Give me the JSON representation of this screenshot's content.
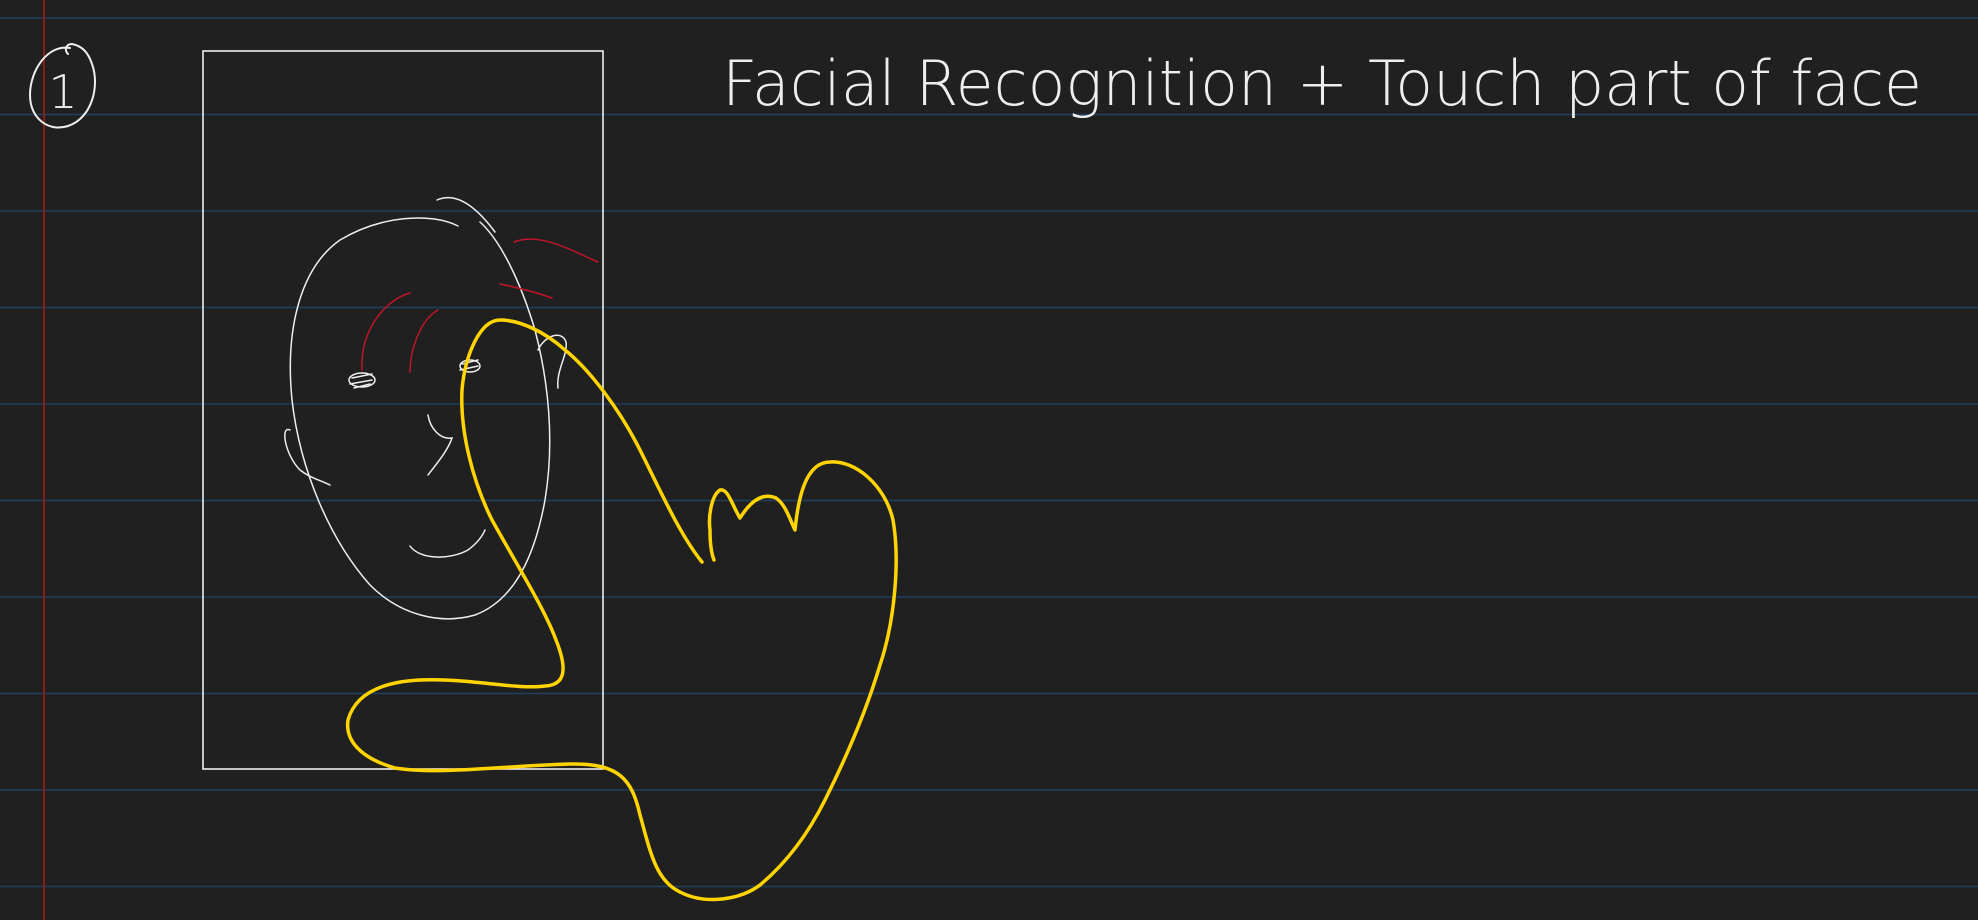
{
  "notebook": {
    "background_color": "#202020",
    "rule_line_color": "#1f3f5f",
    "margin_line_color": "#8b1a1a",
    "ink_white": "#eeeeee",
    "ink_red": "#c0142a",
    "ink_yellow": "#ffd400"
  },
  "note": {
    "number": "1",
    "title": "Facial Recognition + Touch part of face"
  },
  "sketch": {
    "phone_frame_icon": "phone-screen-outline",
    "face_icon": "face-doodle",
    "hand_icon": "hand-touch-outline"
  }
}
